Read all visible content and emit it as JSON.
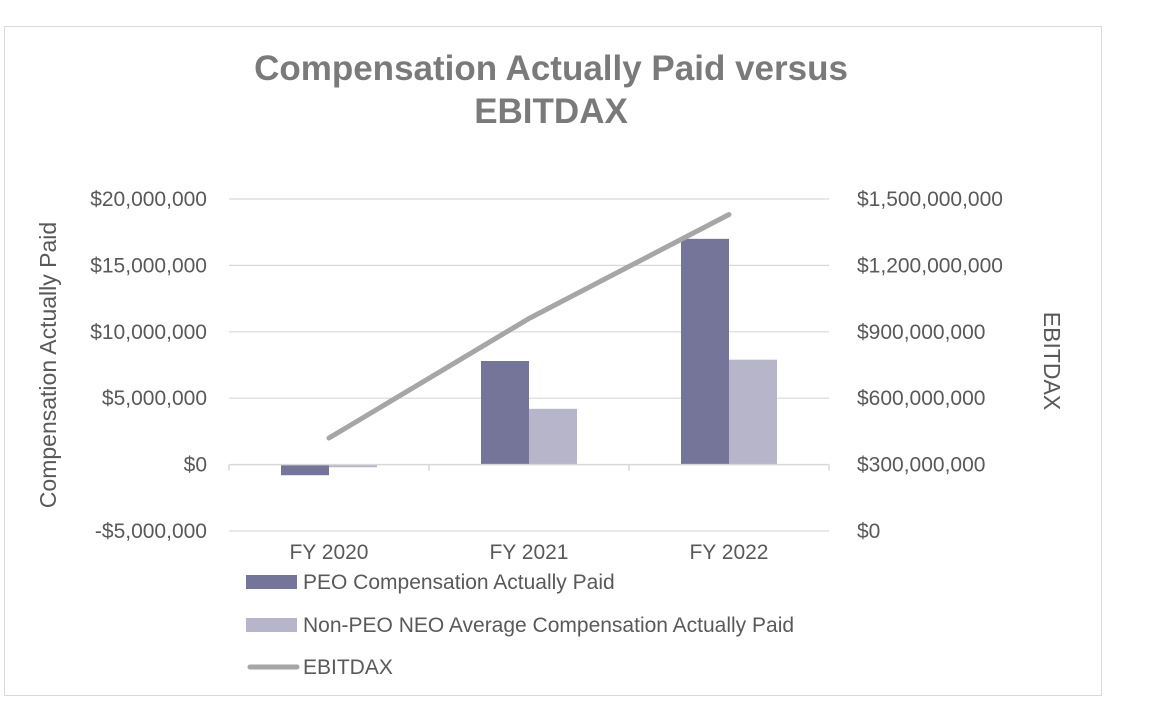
{
  "chart_data": {
    "type": "bar",
    "title_lines": [
      "Compensation Actually Paid versus",
      "EBITDAX"
    ],
    "categories": [
      "FY 2020",
      "FY 2021",
      "FY 2022"
    ],
    "series": [
      {
        "name": "PEO Compensation Actually Paid",
        "kind": "bar",
        "axis": "left",
        "color": "#75759a",
        "values": [
          -800000,
          7800000,
          17000000
        ]
      },
      {
        "name": "Non-PEO NEO Average Compensation Actually Paid",
        "kind": "bar",
        "axis": "left",
        "color": "#b6b5c9",
        "values": [
          -200000,
          4200000,
          7900000
        ]
      },
      {
        "name": "EBITDAX",
        "kind": "line",
        "axis": "right",
        "color": "#a6a6a6",
        "values": [
          420000000,
          960000000,
          1430000000
        ]
      }
    ],
    "left_axis": {
      "label": "Compensation Actually Paid",
      "ylim": [
        -5000000,
        20000000
      ],
      "ticks": [
        -5000000,
        0,
        5000000,
        10000000,
        15000000,
        20000000
      ],
      "tick_labels": [
        "-$5,000,000",
        "$0",
        "$5,000,000",
        "$10,000,000",
        "$15,000,000",
        "$20,000,000"
      ]
    },
    "right_axis": {
      "label": "EBITDAX",
      "ylim": [
        0,
        1500000000
      ],
      "ticks": [
        0,
        300000000,
        600000000,
        900000000,
        1200000000,
        1500000000
      ],
      "tick_labels": [
        "$0",
        "$300,000,000",
        "$600,000,000",
        "$900,000,000",
        "$1,200,000,000",
        "$1,500,000,000"
      ]
    },
    "grid": true,
    "legend_position": "bottom-left"
  }
}
